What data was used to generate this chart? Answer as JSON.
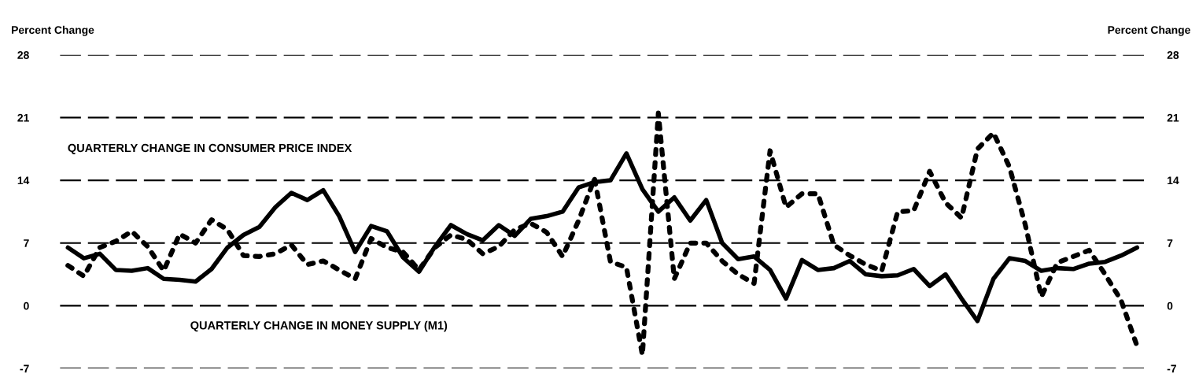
{
  "chart_data": {
    "type": "line",
    "ylabel": "Percent Change",
    "y2label": "Percent Change",
    "annotations": [
      "QUARTERLY CHANGE IN CONSUMER PRICE INDEX",
      "QUARTERLY CHANGE IN MONEY SUPPLY (M1)"
    ],
    "categories": [
      null,
      null,
      null,
      null,
      null,
      null,
      null,
      null,
      null,
      null,
      null,
      null,
      null,
      null,
      null,
      null,
      null,
      null,
      null,
      null,
      null,
      null,
      null,
      null,
      null,
      null,
      null,
      null,
      null,
      null,
      null,
      null,
      null,
      null,
      null,
      null,
      null,
      null,
      null,
      null,
      null,
      null,
      null,
      null,
      null,
      null,
      null,
      null,
      null,
      null,
      null,
      null,
      null,
      null,
      null,
      null,
      null,
      null,
      null,
      null,
      null,
      null,
      null,
      null,
      null,
      null,
      null,
      null
    ],
    "series": [
      {
        "color": "#000000",
        "line_style": "solid",
        "values": [
          6.5,
          5.3,
          5.8,
          4.0,
          3.9,
          4.2,
          3.0,
          2.9,
          2.7,
          4.1,
          6.5,
          7.9,
          8.8,
          11.0,
          12.6,
          11.8,
          12.9,
          10.0,
          6.0,
          8.9,
          8.3,
          5.4,
          3.8,
          6.6,
          9.0,
          8.0,
          7.3,
          9.0,
          7.8,
          9.7,
          10.0,
          10.5,
          13.2,
          13.8,
          14.0,
          17.0,
          13.0,
          10.5,
          12.1,
          9.5,
          11.8,
          7.0,
          5.2,
          5.5,
          4.0,
          0.8,
          5.1,
          4.0,
          4.2,
          5.0,
          3.5,
          3.3,
          3.4,
          4.1,
          2.2,
          3.5,
          0.8,
          -1.7,
          3.0,
          5.3,
          5.0,
          3.9,
          4.2,
          4.1,
          4.7,
          4.9,
          5.6,
          6.5
        ]
      },
      {
        "color": "#000000",
        "line_style": "dotted",
        "values": [
          4.5,
          3.3,
          6.5,
          7.2,
          8.3,
          6.6,
          3.9,
          8.0,
          7.0,
          9.6,
          8.5,
          5.6,
          5.5,
          5.8,
          6.8,
          4.6,
          5.0,
          4.0,
          3.0,
          7.5,
          6.5,
          6.0,
          4.0,
          6.5,
          7.9,
          7.4,
          5.8,
          6.6,
          8.5,
          9.2,
          8.2,
          5.5,
          9.5,
          14.2,
          4.9,
          4.3,
          -5.5,
          21.5,
          3.0,
          7.0,
          7.0,
          5.0,
          3.5,
          2.5,
          17.3,
          11.0,
          12.5,
          12.5,
          6.8,
          5.6,
          4.6,
          3.9,
          10.5,
          10.6,
          15.0,
          11.5,
          9.8,
          17.5,
          19.3,
          15.5,
          9.0,
          1.0,
          4.8,
          5.5,
          6.2,
          3.5,
          0.6,
          -4.5
        ]
      }
    ],
    "ylim": [
      -7,
      28
    ],
    "yticks": [
      -7,
      0,
      7,
      14,
      21,
      28
    ],
    "y2lim": [
      -7,
      28
    ],
    "y2ticks": [
      -7,
      0,
      7,
      14,
      21,
      28
    ],
    "grid": "y"
  }
}
